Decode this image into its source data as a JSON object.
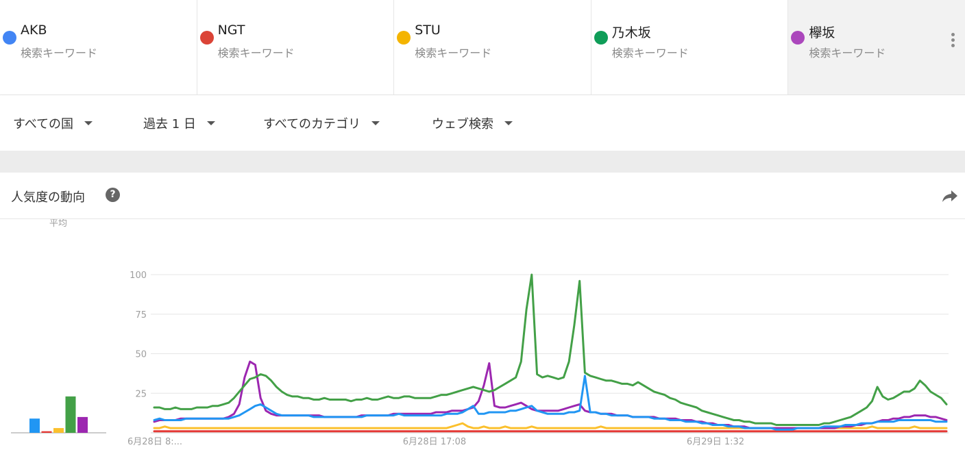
{
  "terms": [
    {
      "name": "AKB",
      "sub": "検索キーワード",
      "color": "#4285f4"
    },
    {
      "name": "NGT",
      "sub": "検索キーワード",
      "color": "#db4437"
    },
    {
      "name": "STU",
      "sub": "検索キーワード",
      "color": "#f4b400"
    },
    {
      "name": "乃木坂",
      "sub": "検索キーワード",
      "color": "#0f9d58"
    },
    {
      "name": "欅坂",
      "sub": "検索キーワード",
      "color": "#ab47bc"
    }
  ],
  "filters": {
    "country": "すべての国",
    "period": "過去 1 日",
    "category": "すべてのカテゴリ",
    "search_type": "ウェブ検索"
  },
  "card": {
    "title": "人気度の動向"
  },
  "chart_data": {
    "type": "line",
    "ylim": [
      0,
      100
    ],
    "yticks": [
      25,
      50,
      75,
      100
    ],
    "xtick_labels": [
      "6月28日 8:...",
      "6月28日 17:08",
      "6月29日 1:32"
    ],
    "average_label": "平均",
    "average": [
      {
        "term": "AKB",
        "value": 9,
        "color": "#2196f3"
      },
      {
        "term": "NGT",
        "value": 1,
        "color": "#e53935"
      },
      {
        "term": "STU",
        "value": 3,
        "color": "#fbc02d"
      },
      {
        "term": "乃木坂",
        "value": 23,
        "color": "#43a047"
      },
      {
        "term": "欅坂",
        "value": 10,
        "color": "#9c27b0"
      }
    ],
    "series": [
      {
        "name": "乃木坂",
        "color": "#43a047",
        "values": [
          16,
          16,
          15,
          15,
          16,
          15,
          15,
          15,
          16,
          16,
          16,
          17,
          17,
          18,
          19,
          22,
          26,
          30,
          34,
          35,
          37,
          36,
          33,
          29,
          26,
          24,
          23,
          23,
          22,
          22,
          21,
          21,
          22,
          21,
          21,
          21,
          21,
          20,
          21,
          21,
          22,
          21,
          21,
          22,
          23,
          22,
          22,
          23,
          23,
          22,
          22,
          22,
          22,
          23,
          24,
          24,
          25,
          26,
          27,
          28,
          29,
          28,
          27,
          26,
          27,
          29,
          31,
          33,
          35,
          45,
          78,
          100,
          37,
          35,
          36,
          35,
          34,
          35,
          45,
          68,
          96,
          38,
          36,
          35,
          34,
          33,
          33,
          32,
          31,
          31,
          30,
          32,
          30,
          28,
          26,
          25,
          24,
          22,
          21,
          19,
          18,
          17,
          16,
          14,
          13,
          12,
          11,
          10,
          9,
          8,
          8,
          7,
          7,
          6,
          6,
          6,
          6,
          5,
          5,
          5,
          5,
          5,
          5,
          5,
          5,
          5,
          6,
          6,
          7,
          8,
          9,
          10,
          12,
          14,
          16,
          20,
          29,
          23,
          21,
          22,
          24,
          26,
          26,
          28,
          33,
          30,
          26,
          24,
          22,
          18
        ]
      },
      {
        "name": "AKB",
        "color": "#2196f3",
        "values": [
          8,
          9,
          8,
          8,
          8,
          8,
          9,
          9,
          9,
          9,
          9,
          9,
          9,
          9,
          9,
          10,
          11,
          13,
          15,
          17,
          18,
          16,
          14,
          12,
          11,
          11,
          11,
          11,
          11,
          11,
          10,
          10,
          10,
          10,
          10,
          10,
          10,
          10,
          10,
          10,
          11,
          11,
          11,
          11,
          11,
          11,
          12,
          11,
          11,
          11,
          11,
          11,
          11,
          11,
          11,
          12,
          12,
          12,
          13,
          15,
          17,
          12,
          12,
          13,
          13,
          13,
          13,
          14,
          14,
          15,
          16,
          17,
          14,
          13,
          12,
          12,
          12,
          12,
          13,
          13,
          14,
          36,
          13,
          13,
          12,
          12,
          11,
          11,
          11,
          11,
          10,
          10,
          10,
          10,
          9,
          9,
          9,
          8,
          8,
          8,
          7,
          7,
          7,
          6,
          6,
          5,
          5,
          5,
          4,
          4,
          4,
          3,
          3,
          3,
          3,
          3,
          3,
          2,
          2,
          2,
          2,
          3,
          3,
          3,
          3,
          3,
          4,
          4,
          4,
          4,
          5,
          5,
          5,
          6,
          6,
          6,
          7,
          7,
          7,
          7,
          8,
          8,
          8,
          8,
          8,
          8,
          8,
          7,
          7,
          7
        ]
      },
      {
        "name": "欅坂",
        "color": "#9c27b0",
        "values": [
          7,
          8,
          8,
          8,
          8,
          9,
          9,
          9,
          9,
          9,
          9,
          9,
          9,
          9,
          10,
          12,
          18,
          35,
          45,
          43,
          22,
          14,
          12,
          11,
          11,
          11,
          11,
          11,
          11,
          11,
          11,
          11,
          10,
          10,
          10,
          10,
          10,
          10,
          10,
          11,
          11,
          11,
          11,
          11,
          11,
          12,
          12,
          12,
          12,
          12,
          12,
          12,
          12,
          13,
          13,
          13,
          14,
          14,
          14,
          15,
          16,
          20,
          30,
          44,
          17,
          16,
          16,
          17,
          18,
          19,
          17,
          15,
          14,
          14,
          14,
          14,
          14,
          15,
          16,
          17,
          18,
          14,
          13,
          13,
          12,
          12,
          12,
          11,
          11,
          11,
          10,
          10,
          10,
          10,
          10,
          9,
          9,
          9,
          9,
          8,
          8,
          8,
          7,
          7,
          6,
          6,
          5,
          5,
          5,
          4,
          4,
          4,
          3,
          3,
          3,
          3,
          3,
          3,
          3,
          3,
          3,
          3,
          3,
          3,
          3,
          3,
          3,
          3,
          3,
          4,
          4,
          4,
          5,
          5,
          6,
          6,
          7,
          8,
          8,
          9,
          9,
          10,
          10,
          11,
          11,
          11,
          10,
          10,
          9,
          8
        ]
      },
      {
        "name": "STU",
        "color": "#fbc02d",
        "values": [
          3,
          3,
          4,
          3,
          3,
          3,
          3,
          3,
          3,
          3,
          3,
          3,
          3,
          3,
          3,
          3,
          3,
          3,
          3,
          3,
          3,
          3,
          3,
          3,
          3,
          3,
          3,
          3,
          3,
          3,
          3,
          3,
          3,
          3,
          3,
          3,
          3,
          3,
          3,
          3,
          3,
          3,
          3,
          3,
          3,
          3,
          3,
          3,
          3,
          3,
          3,
          3,
          3,
          3,
          3,
          3,
          4,
          5,
          6,
          4,
          3,
          3,
          4,
          3,
          3,
          3,
          4,
          3,
          3,
          3,
          3,
          4,
          3,
          3,
          3,
          3,
          3,
          3,
          3,
          3,
          3,
          3,
          3,
          3,
          4,
          3,
          3,
          3,
          3,
          3,
          3,
          3,
          3,
          3,
          3,
          3,
          3,
          3,
          3,
          3,
          3,
          3,
          3,
          3,
          3,
          3,
          3,
          3,
          3,
          3,
          3,
          3,
          3,
          3,
          3,
          3,
          3,
          3,
          3,
          3,
          3,
          3,
          3,
          3,
          3,
          3,
          3,
          3,
          3,
          3,
          3,
          3,
          3,
          3,
          3,
          4,
          3,
          3,
          3,
          3,
          3,
          3,
          3,
          4,
          3,
          3,
          3,
          3,
          3,
          3
        ]
      },
      {
        "name": "NGT",
        "color": "#e53935",
        "values": [
          1,
          1,
          1,
          1,
          1,
          1,
          1,
          1,
          1,
          1,
          1,
          1,
          1,
          1,
          1,
          1,
          1,
          1,
          1,
          1,
          1,
          1,
          1,
          1,
          1,
          1,
          1,
          1,
          1,
          1,
          1,
          1,
          1,
          1,
          1,
          1,
          1,
          1,
          1,
          1,
          1,
          1,
          1,
          1,
          1,
          1,
          1,
          1,
          1,
          1,
          1,
          1,
          1,
          1,
          1,
          1,
          1,
          1,
          1,
          1,
          1,
          1,
          1,
          1,
          1,
          1,
          1,
          1,
          1,
          1,
          1,
          1,
          1,
          1,
          1,
          1,
          1,
          1,
          1,
          1,
          1,
          1,
          1,
          1,
          1,
          1,
          1,
          1,
          1,
          1,
          1,
          1,
          1,
          1,
          1,
          1,
          1,
          1,
          1,
          1,
          1,
          1,
          1,
          1,
          1,
          1,
          1,
          1,
          1,
          1,
          1,
          1,
          1,
          1,
          1,
          1,
          1,
          1,
          1,
          1,
          1,
          1,
          1,
          1,
          1,
          1,
          1,
          1,
          1,
          1,
          1,
          1,
          1,
          1,
          1,
          1,
          1,
          1,
          1,
          1,
          1,
          1,
          1,
          1,
          1,
          1,
          1,
          1,
          1,
          1
        ]
      }
    ]
  }
}
